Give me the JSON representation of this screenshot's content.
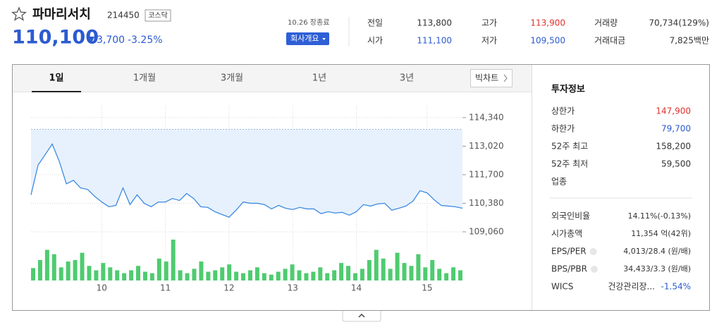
{
  "header": {
    "name": "파마리서치",
    "code": "214450",
    "market": "코스닥",
    "price": "110,100",
    "change": "3,700",
    "change_rate": "-3.25%",
    "status": "10.26 장종료",
    "company_button": "회사개요"
  },
  "quote": [
    {
      "label": "전일",
      "value": "113,800"
    },
    {
      "label": "고가",
      "value": "113,900"
    },
    {
      "label": "거래량",
      "value": "70,734(129%)"
    },
    {
      "label": "시가",
      "value": "111,100"
    },
    {
      "label": "저가",
      "value": "109,500"
    },
    {
      "label": "거래대금",
      "value": "7,825백만"
    }
  ],
  "tabs": [
    "1일",
    "1개월",
    "3개월",
    "1년",
    "3년"
  ],
  "big_chart": "빅차트",
  "chart": {
    "type": "line",
    "categories": [
      null,
      null,
      null,
      null,
      null,
      null,
      null,
      null,
      null,
      null,
      "10",
      null,
      null,
      null,
      null,
      null,
      null,
      null,
      null,
      "11",
      null,
      null,
      null,
      null,
      null,
      null,
      null,
      null,
      "12",
      null,
      null,
      null,
      null,
      null,
      null,
      null,
      null,
      "13",
      null,
      null,
      null,
      null,
      null,
      null,
      null,
      null,
      "14",
      null,
      null,
      null,
      null,
      null,
      null,
      null,
      null,
      null,
      "15",
      null,
      null,
      null,
      null,
      null
    ],
    "values": [
      110770,
      112150,
      112630,
      113120,
      112310,
      111280,
      111440,
      111090,
      111020,
      110700,
      110440,
      110220,
      110280,
      111090,
      110320,
      110770,
      110380,
      110220,
      110440,
      110440,
      110600,
      110510,
      110830,
      110600,
      110220,
      110190,
      109990,
      109860,
      109740,
      110060,
      110440,
      110380,
      110380,
      110320,
      110120,
      110280,
      110150,
      110090,
      110190,
      110120,
      110120,
      109900,
      109990,
      109930,
      109960,
      109830,
      109990,
      110320,
      110250,
      110350,
      110380,
      110060,
      110150,
      110250,
      110480,
      110960,
      110860,
      110540,
      110280,
      110250,
      110220,
      110150
    ],
    "volume": [
      17,
      28,
      42,
      36,
      18,
      26,
      28,
      38,
      20,
      14,
      24,
      18,
      14,
      10,
      14,
      20,
      12,
      10,
      30,
      26,
      56,
      14,
      10,
      16,
      26,
      12,
      14,
      18,
      22,
      12,
      10,
      14,
      18,
      10,
      8,
      12,
      16,
      22,
      14,
      10,
      12,
      18,
      10,
      14,
      24,
      20,
      10,
      16,
      28,
      42,
      30,
      16,
      38,
      24,
      20,
      36,
      18,
      28,
      16,
      10,
      18,
      14
    ],
    "reference_line": 113800,
    "ylim": [
      108700,
      114890
    ],
    "yticks": [
      {
        "value": 114340,
        "label": "114,340"
      },
      {
        "value": 113020,
        "label": "113,020"
      },
      {
        "value": 111700,
        "label": "111,700"
      },
      {
        "value": 110380,
        "label": "110,380"
      },
      {
        "value": 109060,
        "label": "109,060"
      }
    ],
    "grid": true,
    "color": "#3d8be3",
    "fill_color": "#e7f1fd",
    "volume_color": "#4fcb70"
  },
  "info": {
    "title": "투자정보",
    "rows": [
      {
        "label": "상한가",
        "value": "147,900"
      },
      {
        "label": "하한가",
        "value": "79,700"
      },
      {
        "label": "52주 최고",
        "value": "158,200"
      },
      {
        "label": "52주 최저",
        "value": "59,500"
      },
      {
        "label": "업종"
      }
    ],
    "rows2": [
      {
        "label": "외국인비율",
        "value": "14.11%(-0.13%)"
      },
      {
        "label": "시가총액",
        "value": "11,354 억(42위)"
      },
      {
        "label": "EPS/PER",
        "value": "4,013/28.4 (원/배)"
      },
      {
        "label": "BPS/PBR",
        "value": "34,433/3.3 (원/배)"
      }
    ],
    "wics": {
      "label": "WICS",
      "sector": "건강관리장...",
      "value": "-1.54%"
    }
  }
}
